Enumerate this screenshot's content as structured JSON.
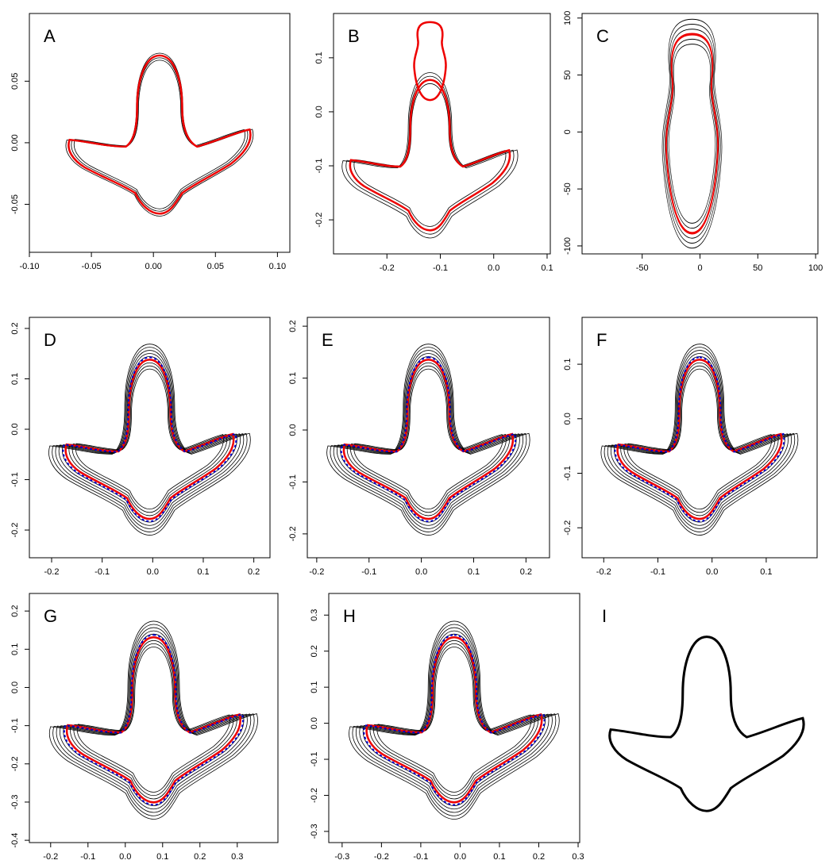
{
  "panels": [
    {
      "label": "A",
      "xlim": [
        -0.1,
        0.11
      ],
      "ylim": [
        -0.089,
        0.105
      ],
      "xticks": [
        {
          "value": -0.1,
          "label": "-0.10"
        },
        -0.05,
        {
          "value": 0,
          "label": "0.00"
        },
        0.05,
        {
          "value": 0.1,
          "label": "0.10"
        }
      ],
      "yticks": [
        -0.05,
        {
          "value": 0,
          "label": "0.00"
        },
        0.05
      ]
    },
    {
      "label": "B",
      "xlim": [
        -0.3,
        0.106
      ],
      "ylim": [
        -0.263,
        0.182
      ],
      "xticks": [
        -0.2,
        -0.1,
        {
          "value": 0,
          "label": "0.0"
        },
        0.1
      ],
      "yticks": [
        -0.2,
        -0.1,
        {
          "value": 0,
          "label": "0.0"
        },
        0.1
      ]
    },
    {
      "label": "C",
      "xlim": [
        -102,
        102
      ],
      "ylim": [
        -107,
        104
      ],
      "xticks": [
        -50,
        0,
        50,
        100
      ],
      "yticks": [
        -100,
        -50,
        0,
        50,
        100
      ]
    },
    {
      "label": "D",
      "xlim": [
        -0.244,
        0.232
      ],
      "ylim": [
        -0.255,
        0.222
      ],
      "xticks": [
        -0.2,
        -0.1,
        {
          "value": 0,
          "label": "0.0"
        },
        0.1,
        0.2
      ],
      "yticks": [
        -0.2,
        -0.1,
        {
          "value": 0,
          "label": "0.0"
        },
        0.1,
        0.2
      ]
    },
    {
      "label": "E",
      "xlim": [
        -0.218,
        0.245
      ],
      "ylim": [
        -0.246,
        0.217
      ],
      "xticks": [
        -0.2,
        -0.1,
        {
          "value": 0,
          "label": "0.0"
        },
        0.1,
        0.2
      ],
      "yticks": [
        -0.2,
        -0.1,
        {
          "value": 0,
          "label": "0.0"
        },
        0.1,
        0.2
      ]
    },
    {
      "label": "F",
      "xlim": [
        -0.24,
        0.194
      ],
      "ylim": [
        -0.255,
        0.186
      ],
      "xticks": [
        -0.2,
        -0.1,
        {
          "value": 0,
          "label": "0.0"
        },
        0.1
      ],
      "yticks": [
        -0.2,
        -0.1,
        {
          "value": 0,
          "label": "0.0"
        },
        0.1
      ]
    },
    {
      "label": "G",
      "xlim": [
        -0.257,
        0.409
      ],
      "ylim": [
        -0.406,
        0.246
      ],
      "xticks": [
        -0.2,
        -0.1,
        {
          "value": 0,
          "label": "0.0"
        },
        0.1,
        0.2,
        0.3
      ],
      "yticks": [
        -0.4,
        -0.3,
        -0.2,
        -0.1,
        {
          "value": 0,
          "label": "0.0"
        },
        0.1,
        0.2
      ]
    },
    {
      "label": "H",
      "xlim": [
        -0.334,
        0.304
      ],
      "ylim": [
        -0.331,
        0.36
      ],
      "xticks": [
        -0.3,
        -0.2,
        -0.1,
        {
          "value": 0,
          "label": "0.0"
        },
        0.1,
        0.2,
        0.3
      ],
      "yticks": [
        -0.3,
        -0.2,
        -0.1,
        {
          "value": 0,
          "label": "0.0"
        },
        0.1,
        0.2,
        0.3
      ]
    },
    {
      "label": "I"
    }
  ]
}
